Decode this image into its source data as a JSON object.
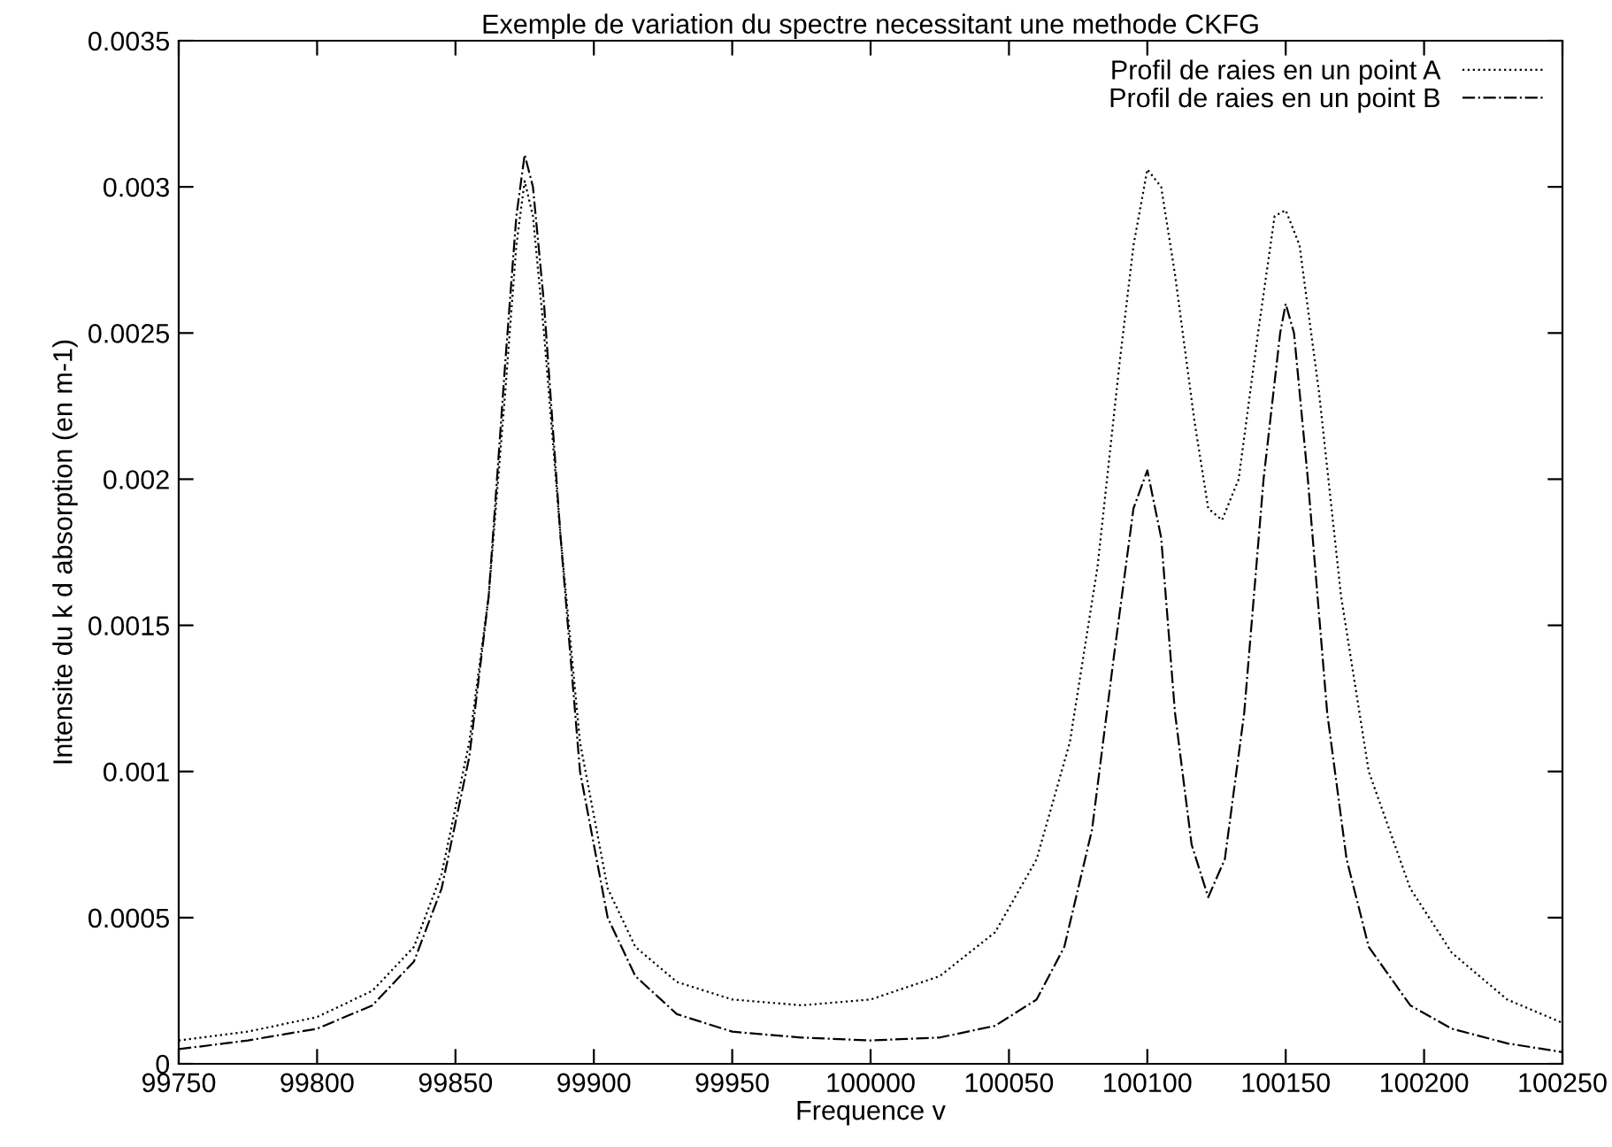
{
  "chart_data": {
    "type": "line",
    "title": "Exemple de variation du spectre necessitant une methode CKFG",
    "xlabel": "Frequence v",
    "ylabel": "Intensite du k d absorption (en m-1)",
    "xlim": [
      99750,
      100250
    ],
    "xticks": [
      99750,
      99800,
      99850,
      99900,
      99950,
      100000,
      100050,
      100100,
      100150,
      100200,
      100250
    ],
    "ylim": [
      0,
      0.0035
    ],
    "yticks": [
      0,
      0.0005,
      0.001,
      0.0015,
      0.002,
      0.0025,
      0.003,
      0.0035
    ],
    "grid": false,
    "legend": "top right",
    "marker": "none",
    "series": [
      {
        "name": "Profil de raies en un point A",
        "color": "#000000",
        "line_style": "dotted",
        "x": [
          99750,
          99775,
          99800,
          99820,
          99835,
          99845,
          99855,
          99862,
          99868,
          99872,
          99875,
          99878,
          99882,
          99888,
          99895,
          99905,
          99915,
          99930,
          99950,
          99975,
          100000,
          100025,
          100045,
          100060,
          100072,
          100082,
          100090,
          100095,
          100100,
          100105,
          100110,
          100117,
          100122,
          100127,
          100133,
          100140,
          100146,
          100150,
          100155,
          100162,
          100170,
          100180,
          100195,
          100210,
          100230,
          100250
        ],
        "values": [
          8e-05,
          0.00011,
          0.00016,
          0.00025,
          0.0004,
          0.00065,
          0.0011,
          0.0016,
          0.0023,
          0.0028,
          0.00302,
          0.0029,
          0.0025,
          0.0018,
          0.0011,
          0.0006,
          0.0004,
          0.00028,
          0.00022,
          0.0002,
          0.00022,
          0.0003,
          0.00045,
          0.0007,
          0.0011,
          0.0017,
          0.0024,
          0.0028,
          0.00306,
          0.003,
          0.0027,
          0.0022,
          0.0019,
          0.00186,
          0.002,
          0.0025,
          0.0029,
          0.00292,
          0.0028,
          0.0023,
          0.0016,
          0.001,
          0.0006,
          0.00038,
          0.00022,
          0.00014
        ]
      },
      {
        "name": "Profil de raies en un point B",
        "color": "#000000",
        "line_style": "dashdot",
        "x": [
          99750,
          99775,
          99800,
          99820,
          99835,
          99845,
          99855,
          99862,
          99868,
          99872,
          99875,
          99878,
          99882,
          99888,
          99895,
          99905,
          99915,
          99930,
          99950,
          99975,
          100000,
          100025,
          100045,
          100060,
          100070,
          100080,
          100088,
          100095,
          100100,
          100105,
          100110,
          100116,
          100122,
          100128,
          100135,
          100142,
          100148,
          100150,
          100153,
          100158,
          100165,
          100172,
          100180,
          100195,
          100210,
          100230,
          100250
        ],
        "values": [
          5e-05,
          8e-05,
          0.00012,
          0.0002,
          0.00035,
          0.0006,
          0.00105,
          0.0016,
          0.0024,
          0.0029,
          0.00311,
          0.003,
          0.0026,
          0.0018,
          0.001,
          0.0005,
          0.0003,
          0.00017,
          0.00011,
          9e-05,
          8e-05,
          9e-05,
          0.00013,
          0.00022,
          0.0004,
          0.0008,
          0.0014,
          0.0019,
          0.00203,
          0.0018,
          0.0012,
          0.00075,
          0.00057,
          0.0007,
          0.0012,
          0.002,
          0.0025,
          0.0026,
          0.0025,
          0.002,
          0.0012,
          0.0007,
          0.0004,
          0.0002,
          0.00012,
          7e-05,
          4e-05
        ]
      }
    ]
  }
}
